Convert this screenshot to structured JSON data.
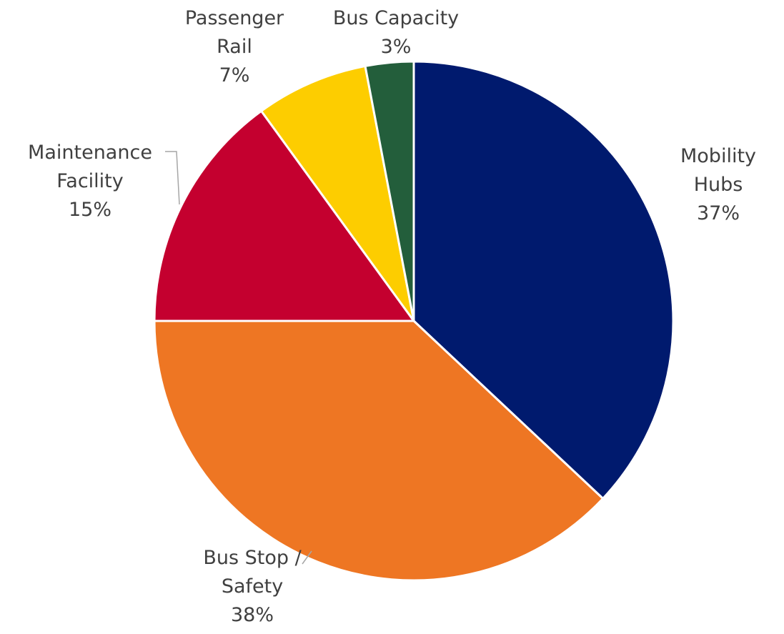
{
  "chart_data": {
    "type": "pie",
    "title": "",
    "slices": [
      {
        "label_lines": [
          "Mobility",
          "Hubs"
        ],
        "percent_label": "37%",
        "value": 37,
        "color": "#001A6E"
      },
      {
        "label_lines": [
          "Bus Stop /",
          "Safety"
        ],
        "percent_label": "38%",
        "value": 38,
        "color": "#EE7623"
      },
      {
        "label_lines": [
          "Maintenance",
          "Facility"
        ],
        "percent_label": "15%",
        "value": 15,
        "color": "#C4002F"
      },
      {
        "label_lines": [
          "Passenger",
          "Rail"
        ],
        "percent_label": "7%",
        "value": 7,
        "color": "#FDCD00"
      },
      {
        "label_lines": [
          "Bus Capacity"
        ],
        "percent_label": "3%",
        "value": 3,
        "color": "#235E3B"
      }
    ],
    "start_angle_deg": 0,
    "direction": "clockwise",
    "slice_border_color": "#ffffff",
    "label_color": "#404040",
    "leader_line_color": "#A6A6A6"
  }
}
